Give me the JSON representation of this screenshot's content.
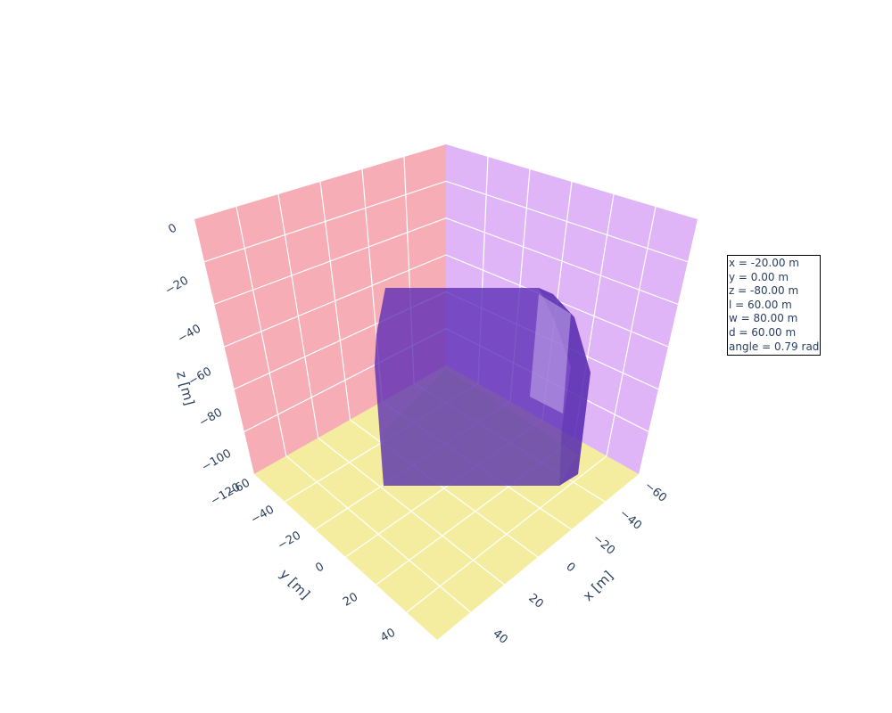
{
  "chart_data": {
    "type": "3d-surface",
    "title": "",
    "axes": {
      "x": {
        "label": "x [m]",
        "ticks": [
          "−60",
          "−40",
          "−20",
          "0",
          "20",
          "40"
        ]
      },
      "y": {
        "label": "y [m]",
        "ticks": [
          "−60",
          "−40",
          "−20",
          "0",
          "20",
          "40"
        ]
      },
      "z": {
        "label": "z [m]",
        "ticks": [
          "0",
          "−20",
          "−40",
          "−60",
          "−80",
          "−100",
          "−120"
        ]
      }
    },
    "walls": {
      "yz_color": "#f7adb5",
      "xz_color": "#dfb5f8",
      "floor_color": "#f4ed9f",
      "grid_color": "#ffffff"
    },
    "object": {
      "shape": "box",
      "color": "#5b2bb5",
      "opacity": 0.78,
      "x": -20.0,
      "y": 0.0,
      "z": -80.0,
      "l": 60.0,
      "w": 80.0,
      "d": 60.0,
      "angle": 0.79
    },
    "annotation": [
      "x = -20.00 m",
      "y = 0.00 m",
      "z = -80.00 m",
      "l = 60.00 m",
      "w = 80.00 m",
      "d = 60.00 m",
      "angle = 0.79 rad"
    ]
  }
}
